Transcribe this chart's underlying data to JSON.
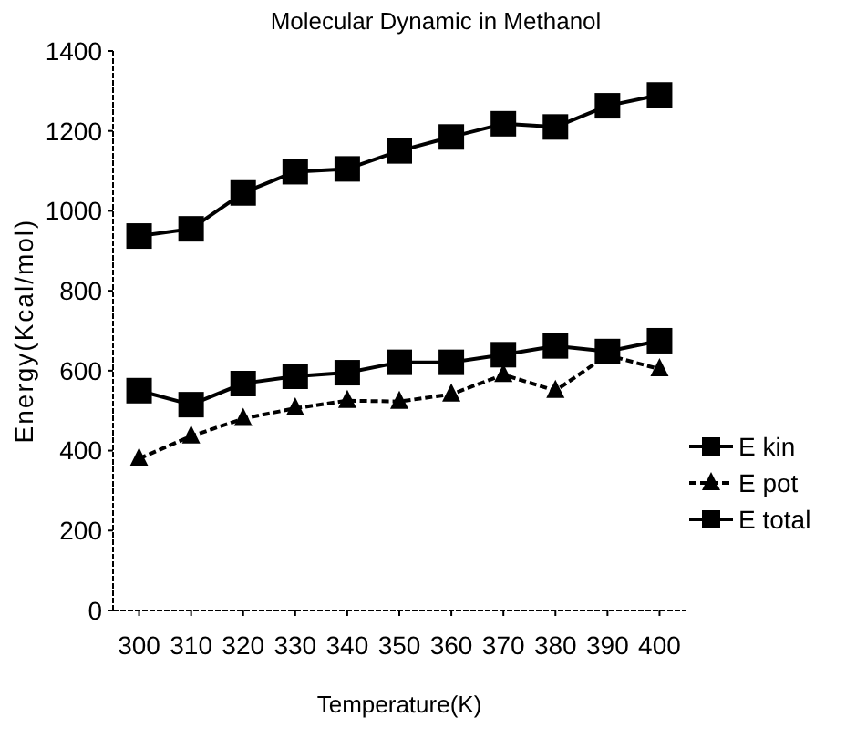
{
  "chart_data": {
    "type": "line",
    "title": "Molecular Dynamic in Methanol",
    "xlabel": "Temperature(K)",
    "ylabel": "Energy(Kcal/mol)",
    "x": [
      300,
      310,
      320,
      330,
      340,
      350,
      360,
      370,
      380,
      390,
      400
    ],
    "xlim": [
      295,
      405
    ],
    "xticks": [
      300,
      310,
      320,
      330,
      340,
      350,
      360,
      370,
      380,
      390,
      400
    ],
    "ylim": [
      0,
      1400
    ],
    "yticks": [
      0,
      200,
      400,
      600,
      800,
      1000,
      1200,
      1400
    ],
    "grid": false,
    "legend": "right",
    "series": [
      {
        "name": "E kin",
        "color": "#000000",
        "marker": "square",
        "line_style": "solid",
        "values": [
          550,
          515,
          568,
          586,
          595,
          621,
          621,
          640,
          662,
          648,
          675
        ]
      },
      {
        "name": "E pot",
        "color": "#000000",
        "marker": "triangle",
        "line_style": "dashed",
        "values": [
          380,
          436,
          480,
          506,
          525,
          523,
          541,
          590,
          550,
          639,
          604
        ]
      },
      {
        "name": "E total",
        "color": "#000000",
        "marker": "square",
        "line_style": "solid",
        "values": [
          937,
          955,
          1045,
          1098,
          1105,
          1150,
          1185,
          1218,
          1210,
          1263,
          1290
        ]
      }
    ]
  }
}
